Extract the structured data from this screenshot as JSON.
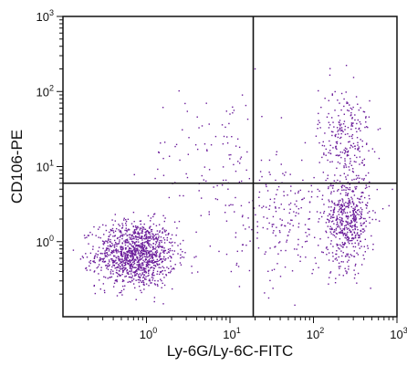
{
  "chart_data": {
    "type": "scatter",
    "title": "",
    "xlabel": "Ly-6G/Ly-6C-FITC",
    "ylabel": "CD106-PE",
    "x_scale": "log",
    "y_scale": "log",
    "xlim": [
      0.1,
      1000
    ],
    "ylim": [
      0.1,
      1000
    ],
    "x_ticks": [
      {
        "base": "10",
        "exp": "0",
        "value": 1
      },
      {
        "base": "10",
        "exp": "1",
        "value": 10
      },
      {
        "base": "10",
        "exp": "2",
        "value": 100
      },
      {
        "base": "10",
        "exp": "3",
        "value": 1000
      }
    ],
    "y_ticks": [
      {
        "base": "10",
        "exp": "0",
        "value": 1
      },
      {
        "base": "10",
        "exp": "1",
        "value": 10
      },
      {
        "base": "10",
        "exp": "2",
        "value": 100
      },
      {
        "base": "10",
        "exp": "3",
        "value": 1000
      }
    ],
    "gates": {
      "x": 19,
      "y": 6
    },
    "point_color": "#6a1b9a",
    "populations": [
      {
        "center": [
          0.75,
          0.68
        ],
        "log_spread": [
          0.24,
          0.22
        ],
        "count": 1200
      },
      {
        "center": [
          260,
          2.0
        ],
        "log_spread": [
          0.13,
          0.32
        ],
        "count": 500
      },
      {
        "center": [
          240,
          25
        ],
        "log_spread": [
          0.16,
          0.33
        ],
        "count": 230
      },
      {
        "center": [
          55,
          1.8
        ],
        "log_spread": [
          0.42,
          0.38
        ],
        "count": 230
      },
      {
        "center": [
          8,
          12
        ],
        "log_spread": [
          0.45,
          0.48
        ],
        "count": 110
      }
    ],
    "sample_points": [
      [
        0.7,
        0.6
      ],
      [
        0.9,
        0.8
      ],
      [
        1.1,
        0.55
      ],
      [
        0.5,
        0.7
      ],
      [
        300,
        2.5
      ],
      [
        250,
        1.2
      ],
      [
        320,
        0.5
      ],
      [
        200,
        3.5
      ],
      [
        220,
        30
      ],
      [
        280,
        60
      ],
      [
        160,
        15
      ],
      [
        40,
        2
      ],
      [
        80,
        1
      ],
      [
        30,
        3
      ],
      [
        5,
        20
      ],
      [
        10,
        50
      ],
      [
        3,
        8
      ],
      [
        20,
        200
      ]
    ]
  }
}
